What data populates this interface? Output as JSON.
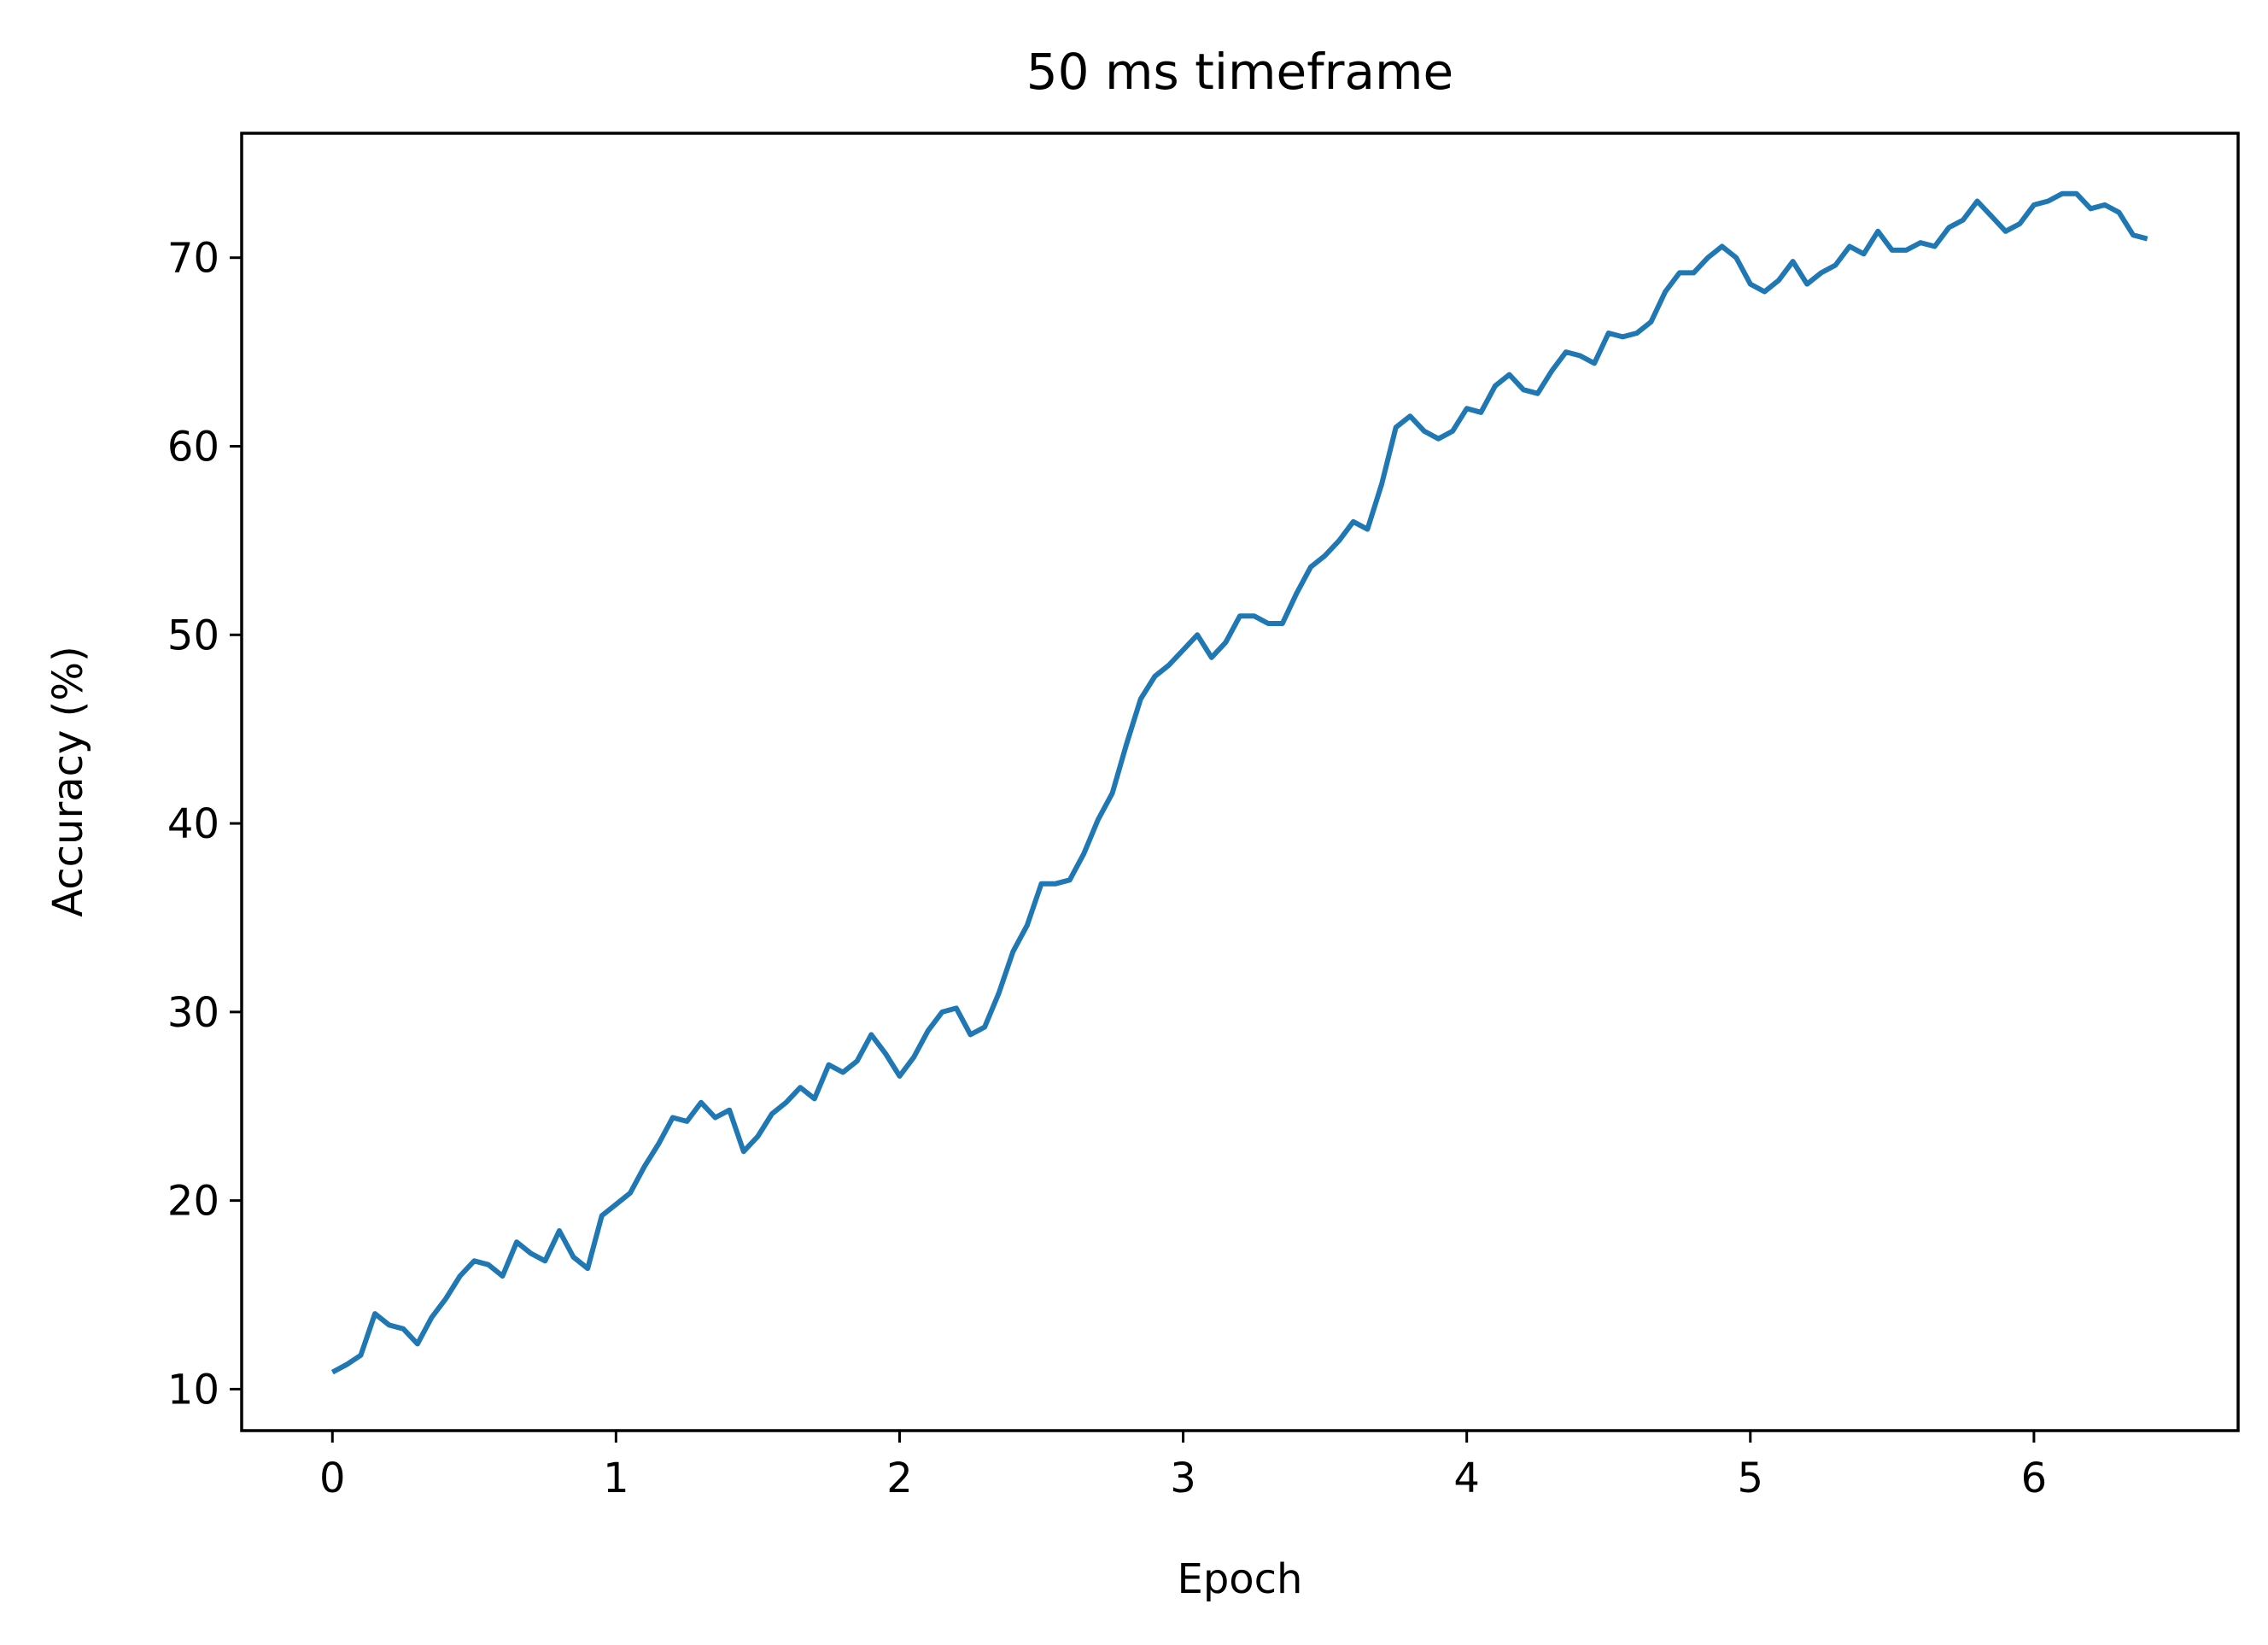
{
  "chart_data": {
    "type": "line",
    "title": "50 ms timeframe",
    "xlabel": "Epoch",
    "ylabel": "Accuracy (%)",
    "xlim": [
      -0.32,
      6.72
    ],
    "ylim": [
      7.8,
      76.6
    ],
    "xticks": [
      0,
      1,
      2,
      3,
      4,
      5,
      6
    ],
    "yticks": [
      10,
      20,
      30,
      40,
      50,
      60,
      70
    ],
    "grid": false,
    "line_color": "#1f77b4",
    "series": [
      {
        "x": [
          0.0,
          0.05,
          0.1,
          0.15,
          0.2,
          0.25,
          0.3,
          0.35,
          0.4,
          0.45,
          0.5,
          0.55,
          0.6,
          0.65,
          0.7,
          0.75,
          0.8,
          0.85,
          0.9,
          0.95,
          1.0,
          1.05,
          1.1,
          1.15,
          1.2,
          1.25,
          1.3,
          1.35,
          1.4,
          1.45,
          1.5,
          1.55,
          1.6,
          1.65,
          1.7,
          1.75,
          1.8,
          1.85,
          1.9,
          1.95,
          2.0,
          2.05,
          2.1,
          2.15,
          2.2,
          2.25,
          2.3,
          2.35,
          2.4,
          2.45,
          2.5,
          2.55,
          2.6,
          2.65,
          2.7,
          2.75,
          2.8,
          2.85,
          2.9,
          2.95,
          3.0,
          3.05,
          3.1,
          3.15,
          3.2,
          3.25,
          3.3,
          3.35,
          3.4,
          3.45,
          3.5,
          3.55,
          3.6,
          3.65,
          3.7,
          3.75,
          3.8,
          3.85,
          3.9,
          3.95,
          4.0,
          4.05,
          4.1,
          4.15,
          4.2,
          4.25,
          4.3,
          4.35,
          4.4,
          4.45,
          4.5,
          4.55,
          4.6,
          4.65,
          4.7,
          4.75,
          4.8,
          4.85,
          4.9,
          4.95,
          5.0,
          5.05,
          5.1,
          5.15,
          5.2,
          5.25,
          5.3,
          5.35,
          5.4,
          5.45,
          5.5,
          5.55,
          5.6,
          5.65,
          5.7,
          5.75,
          5.8,
          5.85,
          5.9,
          5.95,
          6.0,
          6.05,
          6.1,
          6.15,
          6.2,
          6.25,
          6.3,
          6.35,
          6.4
        ],
        "y": [
          10.9,
          11.3,
          11.8,
          14.0,
          13.4,
          13.2,
          12.4,
          13.8,
          14.8,
          16.0,
          16.8,
          16.6,
          16.0,
          17.8,
          17.2,
          16.8,
          18.4,
          17.0,
          16.4,
          19.2,
          19.8,
          20.4,
          21.8,
          23.0,
          24.4,
          24.2,
          25.2,
          24.4,
          24.8,
          22.6,
          23.4,
          24.6,
          25.2,
          26.0,
          25.4,
          27.2,
          26.8,
          27.4,
          28.8,
          27.8,
          26.6,
          27.6,
          29.0,
          30.0,
          30.2,
          28.8,
          29.2,
          31.0,
          33.2,
          34.6,
          36.8,
          36.8,
          37.0,
          38.4,
          40.2,
          41.6,
          44.2,
          46.6,
          47.8,
          48.4,
          49.2,
          50.0,
          48.8,
          49.6,
          51.0,
          51.0,
          50.6,
          50.6,
          52.2,
          53.6,
          54.2,
          55.0,
          56.0,
          55.6,
          58.0,
          61.0,
          61.6,
          60.8,
          60.4,
          60.8,
          62.0,
          61.8,
          63.2,
          63.8,
          63.0,
          62.8,
          64.0,
          65.0,
          64.8,
          64.4,
          66.0,
          65.8,
          66.0,
          66.6,
          68.2,
          69.2,
          69.2,
          70.0,
          70.6,
          70.0,
          68.6,
          68.2,
          68.8,
          69.8,
          68.6,
          69.2,
          69.6,
          70.6,
          70.2,
          71.4,
          70.4,
          70.4,
          70.8,
          70.6,
          71.6,
          72.0,
          73.0,
          72.2,
          71.4,
          71.8,
          72.8,
          73.0,
          73.4,
          73.4,
          72.6,
          72.8,
          72.4,
          71.2,
          71.0
        ]
      }
    ]
  }
}
